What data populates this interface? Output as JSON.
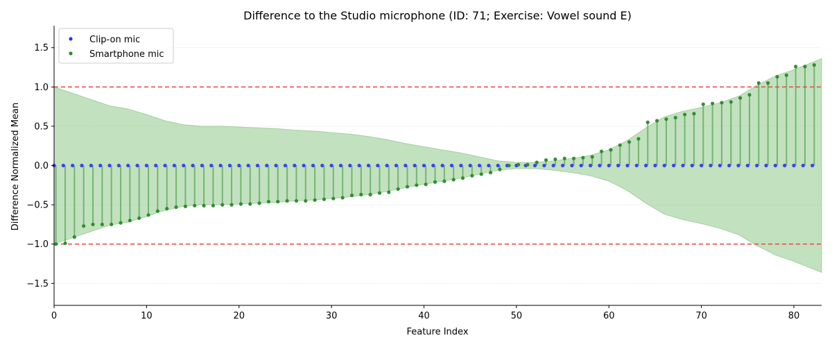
{
  "chart_data": {
    "type": "scatter",
    "title": "Difference to the Studio microphone (ID: 71; Exercise: Vowel sound E)",
    "xlabel": "Feature Index",
    "ylabel": "Difference Normalized Mean",
    "xlim": [
      0,
      83
    ],
    "ylim": [
      -1.78,
      1.78
    ],
    "xticks": [
      0,
      10,
      20,
      30,
      40,
      50,
      60,
      70,
      80
    ],
    "yticks": [
      -1.5,
      -1.0,
      -0.5,
      0.0,
      0.5,
      1.0,
      1.5
    ],
    "xtick_labels": [
      "0",
      "10",
      "20",
      "30",
      "40",
      "50",
      "60",
      "70",
      "80"
    ],
    "ytick_labels": [
      "−1.5",
      "−1.0",
      "−0.5",
      "0.0",
      "0.5",
      "1.0",
      "1.5"
    ],
    "grid": "horizontal-dotted",
    "legend_position": "top-left",
    "reference_lines": [
      {
        "y": 1.0,
        "color": "#e8504f",
        "style": "dashed"
      },
      {
        "y": -1.0,
        "color": "#e8504f",
        "style": "dashed"
      }
    ],
    "band": {
      "color": "#8fc98a",
      "x": [
        0,
        2,
        4,
        6,
        8,
        10,
        12,
        14,
        16,
        18,
        20,
        22,
        24,
        26,
        28,
        30,
        32,
        34,
        36,
        38,
        40,
        42,
        44,
        46,
        48,
        50,
        52,
        54,
        56,
        58,
        60,
        62,
        64,
        66,
        68,
        70,
        72,
        74,
        76,
        78,
        80,
        83
      ],
      "upper": [
        1.0,
        0.92,
        0.84,
        0.76,
        0.72,
        0.65,
        0.57,
        0.52,
        0.5,
        0.5,
        0.49,
        0.48,
        0.47,
        0.45,
        0.44,
        0.42,
        0.4,
        0.37,
        0.33,
        0.28,
        0.24,
        0.2,
        0.16,
        0.11,
        0.06,
        0.04,
        0.04,
        0.06,
        0.09,
        0.13,
        0.2,
        0.32,
        0.48,
        0.62,
        0.69,
        0.74,
        0.8,
        0.88,
        1.02,
        1.14,
        1.22,
        1.36
      ]
    },
    "series": [
      {
        "name": "Clip-on mic",
        "color": "#2f2fff",
        "x": [
          0,
          1,
          2,
          3,
          4,
          5,
          6,
          7,
          8,
          9,
          10,
          11,
          12,
          13,
          14,
          15,
          16,
          17,
          18,
          19,
          20,
          21,
          22,
          23,
          24,
          25,
          26,
          27,
          28,
          29,
          30,
          31,
          32,
          33,
          34,
          35,
          36,
          37,
          38,
          39,
          40,
          41,
          42,
          43,
          44,
          45,
          46,
          47,
          48,
          49,
          50,
          51,
          52,
          53,
          54,
          55,
          56,
          57,
          58,
          59,
          60,
          61,
          62,
          63,
          64,
          65,
          66,
          67,
          68,
          69,
          70,
          71,
          72,
          73,
          74,
          75,
          76,
          77,
          78,
          79,
          80,
          81,
          82
        ],
        "values": [
          0,
          0,
          0,
          0,
          0,
          0,
          0,
          0,
          0,
          0,
          0,
          0,
          0,
          0,
          0,
          0,
          0,
          0,
          0,
          0,
          0,
          0,
          0,
          0,
          0,
          0,
          0,
          0,
          0,
          0,
          0,
          0,
          0,
          0,
          0,
          0,
          0,
          0,
          0,
          0,
          0,
          0,
          0,
          0,
          0,
          0,
          0,
          0,
          0,
          0,
          0,
          0,
          0,
          0,
          0,
          0,
          0,
          0,
          0,
          0,
          0,
          0,
          0,
          0,
          0,
          0,
          0,
          0,
          0,
          0,
          0,
          0,
          0,
          0,
          0,
          0,
          0,
          0,
          0,
          0,
          0,
          0,
          0
        ]
      },
      {
        "name": "Smartphone mic",
        "color": "#2a8a2a",
        "x": [
          0.2,
          1.2,
          2.2,
          3.2,
          4.2,
          5.2,
          6.2,
          7.2,
          8.2,
          9.2,
          10.2,
          11.2,
          12.2,
          13.2,
          14.2,
          15.2,
          16.2,
          17.2,
          18.2,
          19.2,
          20.2,
          21.2,
          22.2,
          23.2,
          24.2,
          25.2,
          26.2,
          27.2,
          28.2,
          29.2,
          30.2,
          31.2,
          32.2,
          33.2,
          34.2,
          35.2,
          36.2,
          37.2,
          38.2,
          39.2,
          40.2,
          41.2,
          42.2,
          43.2,
          44.2,
          45.2,
          46.2,
          47.2,
          48.2,
          49.2,
          50.2,
          51.2,
          52.2,
          53.2,
          54.2,
          55.2,
          56.2,
          57.2,
          58.2,
          59.2,
          60.2,
          61.2,
          62.2,
          63.2,
          64.2,
          65.2,
          66.2,
          67.2,
          68.2,
          69.2,
          70.2,
          71.2,
          72.2,
          73.2,
          74.2,
          75.2,
          76.2,
          77.2,
          78.2,
          79.2,
          80.2,
          81.2,
          82.2
        ],
        "values": [
          -1.0,
          -0.99,
          -0.91,
          -0.77,
          -0.75,
          -0.75,
          -0.75,
          -0.73,
          -0.7,
          -0.67,
          -0.63,
          -0.58,
          -0.55,
          -0.53,
          -0.52,
          -0.51,
          -0.51,
          -0.51,
          -0.5,
          -0.5,
          -0.49,
          -0.49,
          -0.48,
          -0.46,
          -0.46,
          -0.45,
          -0.45,
          -0.45,
          -0.44,
          -0.43,
          -0.42,
          -0.41,
          -0.38,
          -0.37,
          -0.37,
          -0.35,
          -0.34,
          -0.3,
          -0.27,
          -0.25,
          -0.24,
          -0.21,
          -0.2,
          -0.18,
          -0.16,
          -0.13,
          -0.11,
          -0.09,
          -0.05,
          0.0,
          0.01,
          0.01,
          0.04,
          0.07,
          0.08,
          0.09,
          0.09,
          0.1,
          0.11,
          0.18,
          0.2,
          0.26,
          0.3,
          0.34,
          0.55,
          0.57,
          0.59,
          0.61,
          0.65,
          0.66,
          0.78,
          0.79,
          0.8,
          0.81,
          0.86,
          0.9,
          1.05,
          1.05,
          1.13,
          1.15,
          1.26,
          1.26,
          1.28
        ]
      }
    ]
  }
}
